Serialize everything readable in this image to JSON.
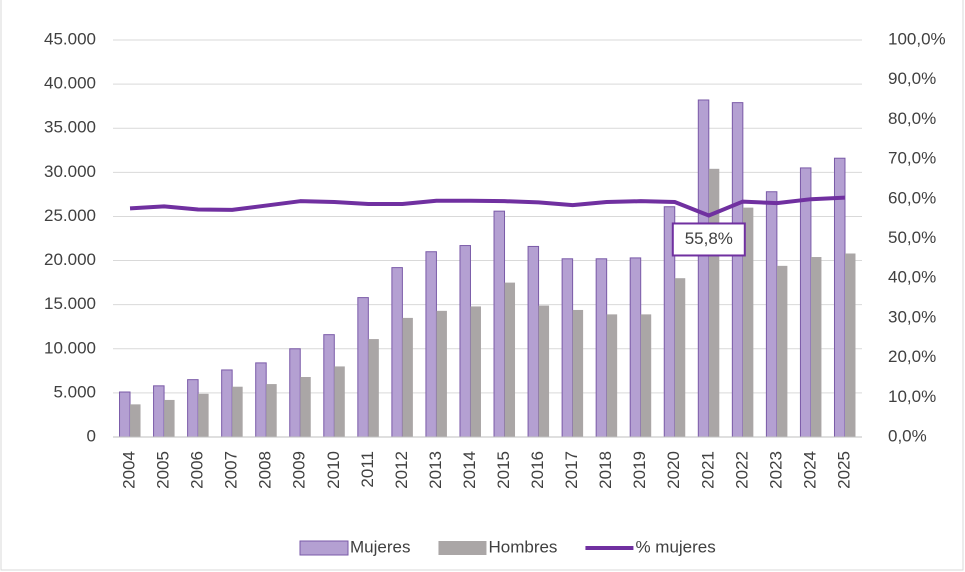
{
  "chart_data": {
    "type": "bar_line",
    "categories": [
      "2004",
      "2005",
      "2006",
      "2007",
      "2008",
      "2009",
      "2010",
      "2011",
      "2012",
      "2013",
      "2014",
      "2015",
      "2016",
      "2017",
      "2018",
      "2019",
      "2020",
      "2021",
      "2022",
      "2023",
      "2024",
      "2025"
    ],
    "series": [
      {
        "name": "Mujeres",
        "type": "bar",
        "color": "#b4a0d2",
        "values": [
          5100,
          5800,
          6500,
          7600,
          8400,
          10000,
          11600,
          15800,
          19200,
          21000,
          21700,
          25600,
          21600,
          20200,
          20200,
          20300,
          26100,
          38200,
          37900,
          27800,
          30500,
          31600
        ]
      },
      {
        "name": "Hombres",
        "type": "bar",
        "color": "#aaa6a6",
        "values": [
          3700,
          4200,
          4900,
          5700,
          6000,
          6800,
          8000,
          11100,
          13500,
          14300,
          14800,
          17500,
          14900,
          14400,
          13900,
          13900,
          18000,
          30400,
          26000,
          19400,
          20400,
          20800
        ]
      },
      {
        "name": "% mujeres",
        "type": "line",
        "axis": "y2",
        "color": "#7030a0",
        "values": [
          57.6,
          58.1,
          57.3,
          57.2,
          58.3,
          59.4,
          59.2,
          58.7,
          58.7,
          59.5,
          59.5,
          59.4,
          59.1,
          58.4,
          59.2,
          59.4,
          59.2,
          55.8,
          59.3,
          58.9,
          59.9,
          60.3
        ],
        "value_labels": [
          null,
          null,
          null,
          null,
          null,
          null,
          null,
          null,
          null,
          null,
          null,
          null,
          null,
          null,
          null,
          null,
          null,
          "55,8%",
          null,
          null,
          null,
          null
        ]
      }
    ],
    "ylim": [
      0,
      45000
    ],
    "yticks": [
      {
        "value": 0,
        "label": "0"
      },
      {
        "value": 5000,
        "label": "5.000"
      },
      {
        "value": 10000,
        "label": "10.000"
      },
      {
        "value": 15000,
        "label": "15.000"
      },
      {
        "value": 20000,
        "label": "20.000"
      },
      {
        "value": 25000,
        "label": "25.000"
      },
      {
        "value": 30000,
        "label": "30.000"
      },
      {
        "value": 35000,
        "label": "35.000"
      },
      {
        "value": 40000,
        "label": "40.000"
      },
      {
        "value": 45000,
        "label": "45.000"
      }
    ],
    "y2lim": [
      0,
      100
    ],
    "y2ticks": [
      {
        "value": 0,
        "label": "0,0%"
      },
      {
        "value": 10,
        "label": "10,0%"
      },
      {
        "value": 20,
        "label": "20,0%"
      },
      {
        "value": 30,
        "label": "30,0%"
      },
      {
        "value": 40,
        "label": "40,0%"
      },
      {
        "value": 50,
        "label": "50,0%"
      },
      {
        "value": 60,
        "label": "60,0%"
      },
      {
        "value": 70,
        "label": "70,0%"
      },
      {
        "value": 80,
        "label": "80,0%"
      },
      {
        "value": 90,
        "label": "90,0%"
      },
      {
        "value": 100,
        "label": "100,0%"
      }
    ],
    "grid": true,
    "legend": "bottom"
  }
}
